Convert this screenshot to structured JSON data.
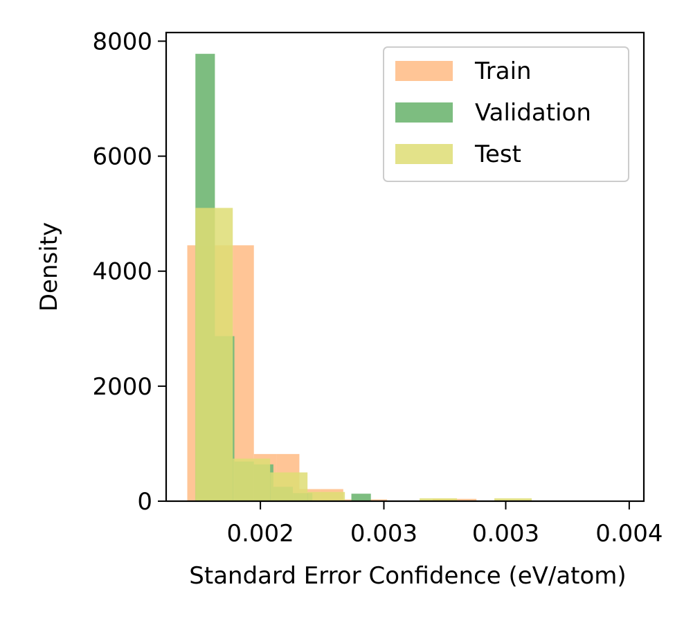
{
  "chart_data": {
    "type": "histogram",
    "title": "",
    "xlabel": "Standard Error Confidence (eV/atom)",
    "ylabel": "Density",
    "xlim": [
      0.00139,
      0.00433
    ],
    "ylim": [
      0,
      8150
    ],
    "x_ticks": [
      {
        "value": 0.00197,
        "label": "0.002"
      },
      {
        "value": 0.00273,
        "label": "0.003"
      },
      {
        "value": 0.00348,
        "label": "0.003"
      },
      {
        "value": 0.00424,
        "label": "0.004"
      }
    ],
    "y_ticks": [
      {
        "value": 0,
        "label": "0"
      },
      {
        "value": 2000,
        "label": "2000"
      },
      {
        "value": 4000,
        "label": "4000"
      },
      {
        "value": 6000,
        "label": "6000"
      },
      {
        "value": 8000,
        "label": "8000"
      }
    ],
    "grid": false,
    "legend_position": "top-right",
    "series": [
      {
        "name": "Train",
        "color": "#ffbb84",
        "opacity": 0.85,
        "bins": [
          {
            "x0": 0.00152,
            "x1": 0.00166,
            "y": 4450
          },
          {
            "x0": 0.00166,
            "x1": 0.0018,
            "y": 4450
          },
          {
            "x0": 0.0018,
            "x1": 0.00193,
            "y": 4450
          },
          {
            "x0": 0.00193,
            "x1": 0.00207,
            "y": 820
          },
          {
            "x0": 0.00207,
            "x1": 0.00221,
            "y": 820
          },
          {
            "x0": 0.00221,
            "x1": 0.00234,
            "y": 210
          },
          {
            "x0": 0.00234,
            "x1": 0.00248,
            "y": 210
          },
          {
            "x0": 0.00248,
            "x1": 0.00262,
            "y": 30
          },
          {
            "x0": 0.00262,
            "x1": 0.00275,
            "y": 30
          },
          {
            "x0": 0.00275,
            "x1": 0.00289,
            "y": 0
          },
          {
            "x0": 0.00289,
            "x1": 0.00303,
            "y": 0
          },
          {
            "x0": 0.00303,
            "x1": 0.00316,
            "y": 40
          },
          {
            "x0": 0.00316,
            "x1": 0.0033,
            "y": 40
          }
        ]
      },
      {
        "name": "Validation",
        "color": "#76b979",
        "opacity": 0.95,
        "bins": [
          {
            "x0": 0.00157,
            "x1": 0.00169,
            "y": 7780
          },
          {
            "x0": 0.00169,
            "x1": 0.00181,
            "y": 2870
          },
          {
            "x0": 0.00181,
            "x1": 0.00193,
            "y": 690
          },
          {
            "x0": 0.00193,
            "x1": 0.00205,
            "y": 640
          },
          {
            "x0": 0.00205,
            "x1": 0.00217,
            "y": 250
          },
          {
            "x0": 0.00217,
            "x1": 0.00229,
            "y": 140
          },
          {
            "x0": 0.00229,
            "x1": 0.00241,
            "y": 0
          },
          {
            "x0": 0.00241,
            "x1": 0.00253,
            "y": 0
          },
          {
            "x0": 0.00253,
            "x1": 0.00265,
            "y": 130
          },
          {
            "x0": 0.00265,
            "x1": 0.00277,
            "y": 0
          }
        ]
      },
      {
        "name": "Test",
        "color": "#dedd74",
        "opacity": 0.85,
        "bins": [
          {
            "x0": 0.00157,
            "x1": 0.0018,
            "y": 5100
          },
          {
            "x0": 0.0018,
            "x1": 0.00203,
            "y": 740
          },
          {
            "x0": 0.00203,
            "x1": 0.00226,
            "y": 500
          },
          {
            "x0": 0.00226,
            "x1": 0.00249,
            "y": 160
          },
          {
            "x0": 0.00249,
            "x1": 0.00272,
            "y": 0
          },
          {
            "x0": 0.00272,
            "x1": 0.00295,
            "y": 0
          },
          {
            "x0": 0.00295,
            "x1": 0.00318,
            "y": 50
          },
          {
            "x0": 0.00318,
            "x1": 0.00341,
            "y": 0
          },
          {
            "x0": 0.00341,
            "x1": 0.00364,
            "y": 50
          }
        ]
      }
    ]
  }
}
